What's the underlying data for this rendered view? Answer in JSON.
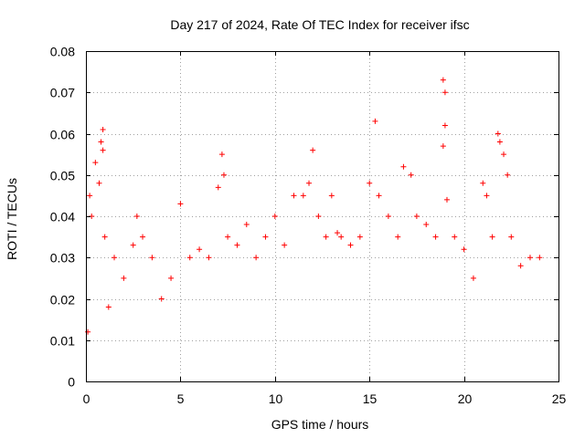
{
  "chart_data": {
    "type": "scatter",
    "title": "Day 217 of 2024, Rate Of TEC Index for receiver ifsc",
    "xlabel": "GPS time / hours",
    "ylabel": "ROTI / TECUs",
    "xlim": [
      0,
      25
    ],
    "ylim": [
      0,
      0.08
    ],
    "xticks": [
      "0",
      "5",
      "10",
      "15",
      "20",
      "25"
    ],
    "yticks": [
      "0",
      "0.01",
      "0.02",
      "0.03",
      "0.04",
      "0.05",
      "0.06",
      "0.07",
      "0.08"
    ],
    "grid": true,
    "marker": "plus",
    "color": "#ff0000",
    "series": [
      {
        "name": "ROTI",
        "points": [
          [
            0.1,
            0.012
          ],
          [
            0.2,
            0.045
          ],
          [
            0.3,
            0.04
          ],
          [
            0.5,
            0.053
          ],
          [
            0.7,
            0.048
          ],
          [
            0.8,
            0.058
          ],
          [
            0.9,
            0.061
          ],
          [
            0.9,
            0.056
          ],
          [
            1.0,
            0.035
          ],
          [
            1.2,
            0.018
          ],
          [
            1.5,
            0.03
          ],
          [
            2.0,
            0.025
          ],
          [
            2.5,
            0.033
          ],
          [
            2.7,
            0.04
          ],
          [
            3.0,
            0.035
          ],
          [
            3.5,
            0.03
          ],
          [
            4.0,
            0.02
          ],
          [
            4.5,
            0.025
          ],
          [
            5.0,
            0.043
          ],
          [
            5.5,
            0.03
          ],
          [
            6.0,
            0.032
          ],
          [
            6.5,
            0.03
          ],
          [
            7.0,
            0.047
          ],
          [
            7.2,
            0.055
          ],
          [
            7.3,
            0.05
          ],
          [
            7.5,
            0.035
          ],
          [
            8.0,
            0.033
          ],
          [
            8.5,
            0.038
          ],
          [
            9.0,
            0.03
          ],
          [
            9.5,
            0.035
          ],
          [
            10.0,
            0.04
          ],
          [
            10.5,
            0.033
          ],
          [
            11.0,
            0.045
          ],
          [
            11.5,
            0.045
          ],
          [
            11.8,
            0.048
          ],
          [
            12.0,
            0.056
          ],
          [
            12.3,
            0.04
          ],
          [
            12.7,
            0.035
          ],
          [
            13.0,
            0.045
          ],
          [
            13.3,
            0.036
          ],
          [
            13.5,
            0.035
          ],
          [
            14.0,
            0.033
          ],
          [
            14.5,
            0.035
          ],
          [
            15.0,
            0.048
          ],
          [
            15.3,
            0.063
          ],
          [
            15.5,
            0.045
          ],
          [
            16.0,
            0.04
          ],
          [
            16.5,
            0.035
          ],
          [
            16.8,
            0.052
          ],
          [
            17.2,
            0.05
          ],
          [
            17.5,
            0.04
          ],
          [
            18.0,
            0.038
          ],
          [
            18.5,
            0.035
          ],
          [
            18.9,
            0.073
          ],
          [
            19.0,
            0.07
          ],
          [
            19.0,
            0.062
          ],
          [
            18.9,
            0.057
          ],
          [
            19.1,
            0.044
          ],
          [
            19.5,
            0.035
          ],
          [
            20.0,
            0.032
          ],
          [
            20.5,
            0.025
          ],
          [
            21.0,
            0.048
          ],
          [
            21.2,
            0.045
          ],
          [
            21.5,
            0.035
          ],
          [
            21.8,
            0.06
          ],
          [
            21.9,
            0.058
          ],
          [
            22.1,
            0.055
          ],
          [
            22.3,
            0.05
          ],
          [
            22.5,
            0.035
          ],
          [
            23.0,
            0.028
          ],
          [
            23.5,
            0.03
          ],
          [
            24.0,
            0.03
          ]
        ]
      }
    ]
  }
}
